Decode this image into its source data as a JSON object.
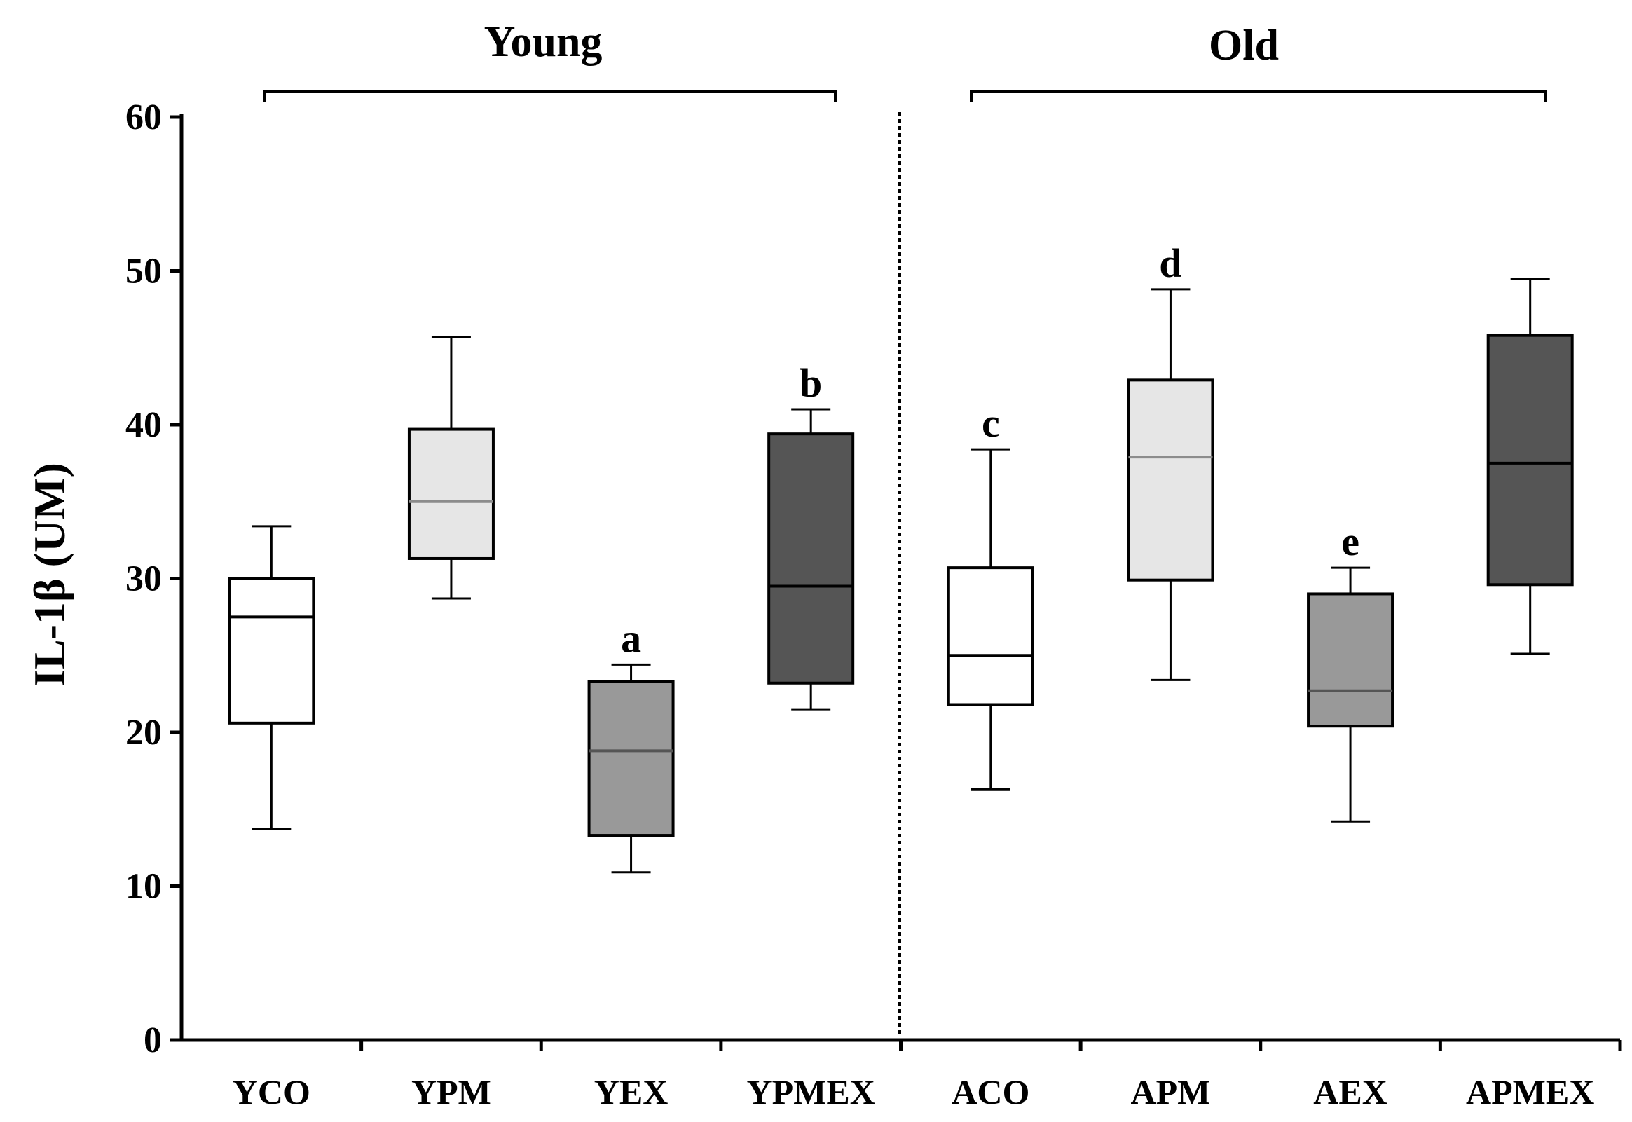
{
  "chart_data": {
    "type": "box",
    "ylabel": "IL-1β (UM)",
    "ylim": [
      0,
      60
    ],
    "yticks": [
      0,
      10,
      20,
      30,
      40,
      50,
      60
    ],
    "groups": [
      {
        "name": "Young",
        "categories": [
          "YCO",
          "YPM",
          "YEX",
          "YPMEX"
        ]
      },
      {
        "name": "Old",
        "categories": [
          "ACO",
          "APM",
          "AEX",
          "APMEX"
        ]
      }
    ],
    "boxes": [
      {
        "category": "YCO",
        "min": 13.7,
        "q1": 20.6,
        "median": 27.5,
        "q3": 30.0,
        "max": 33.4,
        "fill": "#ffffff",
        "median_color": "#000000",
        "annotation": ""
      },
      {
        "category": "YPM",
        "min": 28.7,
        "q1": 31.3,
        "median": 35.0,
        "q3": 39.7,
        "max": 45.7,
        "fill": "#e6e6e6",
        "median_color": "#8c8c8c",
        "annotation": ""
      },
      {
        "category": "YEX",
        "min": 10.9,
        "q1": 13.3,
        "median": 18.8,
        "q3": 23.3,
        "max": 24.4,
        "fill": "#999999",
        "median_color": "#555555",
        "annotation": "a"
      },
      {
        "category": "YPMEX",
        "min": 21.5,
        "q1": 23.2,
        "median": 29.5,
        "q3": 39.4,
        "max": 41.0,
        "fill": "#555555",
        "median_color": "#000000",
        "annotation": "b"
      },
      {
        "category": "ACO",
        "min": 16.3,
        "q1": 21.8,
        "median": 25.0,
        "q3": 30.7,
        "max": 38.4,
        "fill": "#ffffff",
        "median_color": "#000000",
        "annotation": "c"
      },
      {
        "category": "APM",
        "min": 23.4,
        "q1": 29.9,
        "median": 37.9,
        "q3": 42.9,
        "max": 48.8,
        "fill": "#e6e6e6",
        "median_color": "#8c8c8c",
        "annotation": "d"
      },
      {
        "category": "AEX",
        "min": 14.2,
        "q1": 20.4,
        "median": 22.7,
        "q3": 29.0,
        "max": 30.7,
        "fill": "#999999",
        "median_color": "#555555",
        "annotation": "e"
      },
      {
        "category": "APMEX",
        "min": 25.1,
        "q1": 29.6,
        "median": 37.5,
        "q3": 45.8,
        "max": 49.5,
        "fill": "#555555",
        "median_color": "#000000",
        "annotation": ""
      }
    ]
  }
}
